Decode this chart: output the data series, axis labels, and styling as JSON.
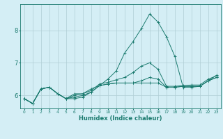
{
  "xlabel": "Humidex (Indice chaleur)",
  "ylabel": "",
  "bg_color": "#d4eef5",
  "line_color": "#1a7a6e",
  "grid_color": "#b0cdd4",
  "x_values": [
    0,
    1,
    2,
    3,
    4,
    5,
    6,
    7,
    8,
    9,
    10,
    11,
    12,
    13,
    14,
    15,
    16,
    17,
    18,
    19,
    20,
    21,
    22,
    23
  ],
  "line1": [
    5.9,
    5.75,
    6.2,
    6.25,
    6.05,
    5.9,
    6.05,
    6.05,
    6.2,
    6.3,
    6.35,
    6.38,
    6.38,
    6.38,
    6.38,
    6.38,
    6.38,
    6.25,
    6.25,
    6.28,
    6.28,
    6.28,
    6.45,
    6.55
  ],
  "line2": [
    5.9,
    5.75,
    6.2,
    6.25,
    6.05,
    5.9,
    5.9,
    5.95,
    6.1,
    6.3,
    6.5,
    6.75,
    7.3,
    7.65,
    8.05,
    8.5,
    8.25,
    7.8,
    7.2,
    6.25,
    6.25,
    6.28,
    6.45,
    6.62
  ],
  "line3": [
    5.9,
    5.75,
    6.2,
    6.25,
    6.05,
    5.9,
    5.95,
    6.0,
    6.1,
    6.3,
    6.35,
    6.38,
    6.38,
    6.38,
    6.45,
    6.55,
    6.5,
    6.25,
    6.25,
    6.28,
    6.28,
    6.28,
    6.45,
    6.55
  ],
  "line4": [
    5.9,
    5.75,
    6.2,
    6.25,
    6.05,
    5.9,
    6.0,
    6.05,
    6.15,
    6.35,
    6.4,
    6.48,
    6.55,
    6.7,
    6.9,
    7.0,
    6.8,
    6.28,
    6.28,
    6.3,
    6.32,
    6.32,
    6.5,
    6.6
  ],
  "ylim": [
    5.6,
    8.8
  ],
  "xlim": [
    -0.5,
    23.5
  ],
  "yticks": [
    6,
    7,
    8
  ],
  "xtick_labels": [
    "0",
    "1",
    "2",
    "3",
    "4",
    "5",
    "6",
    "7",
    "8",
    "9",
    "10",
    "11",
    "12",
    "13",
    "14",
    "15",
    "16",
    "17",
    "18",
    "19",
    "20",
    "21",
    "22",
    "23"
  ]
}
